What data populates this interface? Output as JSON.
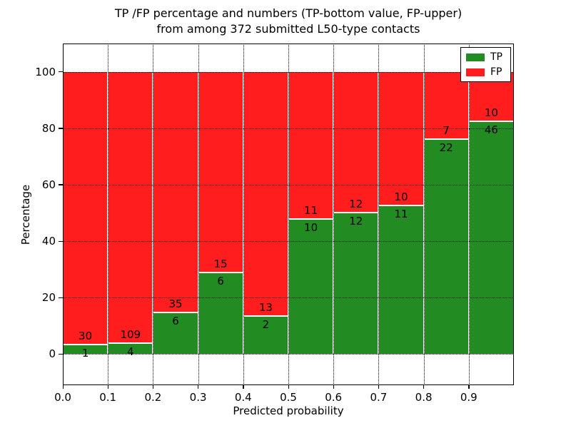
{
  "title": {
    "line1": "TP /FP percentage and numbers (TP-bottom value, FP-upper)",
    "line2": "from among 372 submitted L50-type contacts"
  },
  "axes": {
    "xlabel": "Predicted probability",
    "ylabel": "Percentage"
  },
  "legend": {
    "position": "upper right",
    "items": [
      {
        "label": "TP",
        "color": "#228b22"
      },
      {
        "label": "FP",
        "color": "#ff1d1d"
      }
    ]
  },
  "chart_data": {
    "type": "bar",
    "stacked": true,
    "title": "TP /FP percentage and numbers (TP-bottom value, FP-upper) from among 372 submitted L50-type contacts",
    "xlabel": "Predicted probability",
    "ylabel": "Percentage",
    "total_submitted_contacts": 372,
    "xlim": [
      0.0,
      1.0
    ],
    "ylim": [
      -11,
      110
    ],
    "bin_width": 0.1,
    "bin_starts": [
      0.0,
      0.1,
      0.2,
      0.3,
      0.4,
      0.5,
      0.6,
      0.7,
      0.8,
      0.9
    ],
    "x_ticks": [
      0.0,
      0.1,
      0.2,
      0.3,
      0.4,
      0.5,
      0.6,
      0.7,
      0.8,
      0.9
    ],
    "x_tick_labels": [
      "0.0",
      "0.1",
      "0.2",
      "0.3",
      "0.4",
      "0.5",
      "0.6",
      "0.7",
      "0.8",
      "0.9"
    ],
    "y_ticks": [
      0,
      20,
      40,
      60,
      80,
      100
    ],
    "y_tick_labels": [
      "0",
      "20",
      "40",
      "60",
      "80",
      "100"
    ],
    "series": [
      {
        "name": "TP",
        "color": "#228b22",
        "position": "bottom",
        "counts": [
          1,
          4,
          6,
          6,
          2,
          10,
          12,
          11,
          22,
          46
        ]
      },
      {
        "name": "FP",
        "color": "#ff1d1d",
        "position": "top",
        "counts": [
          30,
          109,
          35,
          15,
          13,
          11,
          12,
          10,
          7,
          10
        ]
      }
    ],
    "tp_percent": [
      3.23,
      3.54,
      14.63,
      28.57,
      13.33,
      47.62,
      50.0,
      52.38,
      75.86,
      82.14
    ],
    "bar_total_percent": 100,
    "grid": {
      "style": "dotted",
      "color": "#000000",
      "drawn_over_bars": true
    },
    "legend_position": "upper right"
  }
}
